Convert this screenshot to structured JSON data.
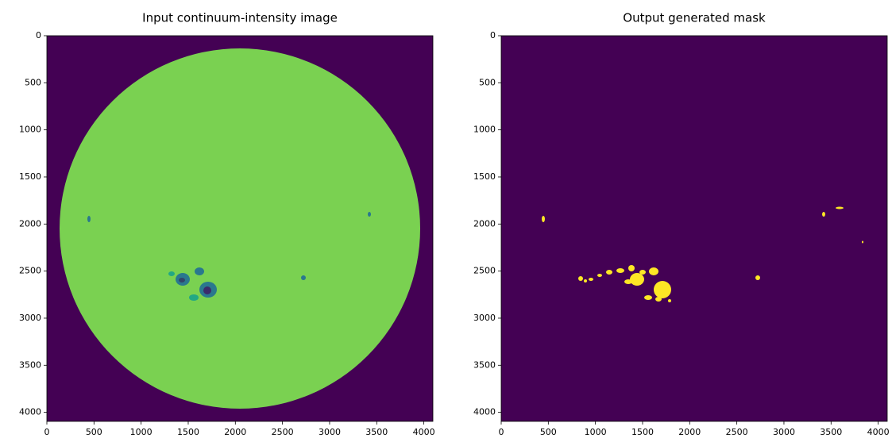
{
  "chart_data": [
    {
      "type": "image",
      "title": "Input continuum-intensity image",
      "xlim": [
        0,
        4096
      ],
      "ylim": [
        4096,
        0
      ],
      "xticks": [
        0,
        500,
        1000,
        1500,
        2000,
        2500,
        3000,
        3500,
        4000
      ],
      "yticks": [
        0,
        500,
        1000,
        1500,
        2000,
        2500,
        3000,
        3500,
        4000
      ]
    },
    {
      "type": "image",
      "title": "Output generated mask",
      "xlim": [
        0,
        4096
      ],
      "ylim": [
        4096,
        0
      ],
      "xticks": [
        0,
        500,
        1000,
        1500,
        2000,
        2500,
        3000,
        3500,
        4000
      ],
      "yticks": [
        0,
        500,
        1000,
        1500,
        2000,
        2500,
        3000,
        3500,
        4000
      ]
    }
  ]
}
